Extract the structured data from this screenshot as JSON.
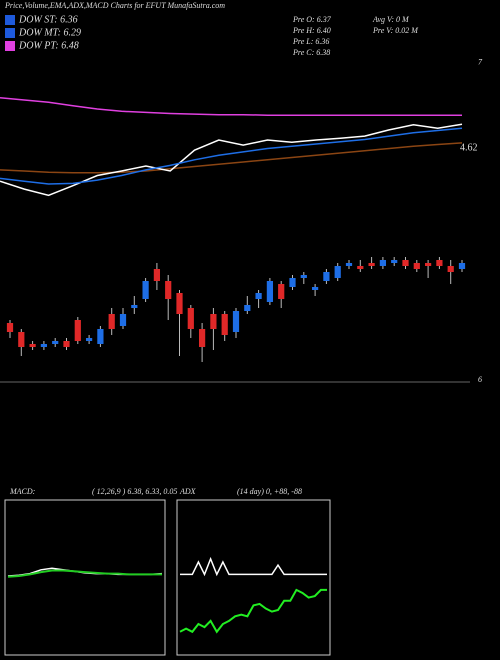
{
  "header": {
    "title": "Price,Volume,EMA,ADX,MACD Charts for EFUT MunafaSutra.com",
    "legend": [
      {
        "label": "DOW ST: 6.36",
        "color": "#1e5adc"
      },
      {
        "label": "DOW MT: 6.29",
        "color": "#1e5adc"
      },
      {
        "label": "DOW PT: 6.48",
        "color": "#e040e0"
      }
    ],
    "stats": [
      "Pre  O: 6.37",
      "Pre  H: 6.40",
      "Pre  L: 6.36",
      "Pre  C: 6.38"
    ],
    "volume": [
      "Avg V: 0  M",
      "Pre  V: 0.02  M"
    ]
  },
  "chart_data": [
    {
      "type": "line",
      "annotation": "4.62",
      "ylim": [
        4.3,
        7.05
      ],
      "yticks": [
        7
      ],
      "series": [
        {
          "color": "#e040e0",
          "values": [
            6.38,
            6.34,
            6.3,
            6.24,
            6.18,
            6.14,
            6.12,
            6.1,
            6.09,
            6.08,
            6.08,
            6.07,
            6.07,
            6.07,
            6.07,
            6.07,
            6.07,
            6.07,
            6.07,
            6.07
          ]
        },
        {
          "color": "#8b4513",
          "values": [
            5.1,
            5.08,
            5.06,
            5.05,
            5.05,
            5.06,
            5.08,
            5.12,
            5.16,
            5.2,
            5.24,
            5.28,
            5.32,
            5.36,
            5.4,
            5.44,
            5.48,
            5.52,
            5.55,
            5.58
          ]
        },
        {
          "color": "#ffffff",
          "values": [
            4.9,
            4.76,
            4.65,
            4.82,
            5.0,
            5.08,
            5.17,
            5.08,
            5.45,
            5.63,
            5.54,
            5.63,
            5.59,
            5.63,
            5.66,
            5.7,
            5.81,
            5.9,
            5.84,
            5.91
          ]
        },
        {
          "color": "#1e6ee6",
          "values": [
            4.95,
            4.9,
            4.85,
            4.86,
            4.92,
            5.0,
            5.1,
            5.18,
            5.28,
            5.36,
            5.42,
            5.48,
            5.52,
            5.56,
            5.6,
            5.64,
            5.7,
            5.76,
            5.8,
            5.84
          ]
        }
      ]
    },
    {
      "type": "candlestick",
      "ylim": [
        5.95,
        6.5
      ],
      "yticks": [
        6
      ],
      "up_color": "#1e6ee6",
      "down_color": "#e02828",
      "open": [
        6.19,
        6.16,
        6.12,
        6.11,
        6.12,
        6.13,
        6.2,
        6.13,
        6.12,
        6.22,
        6.18,
        6.24,
        6.27,
        6.37,
        6.33,
        6.29,
        6.24,
        6.17,
        6.22,
        6.22,
        6.16,
        6.23,
        6.27,
        6.26,
        6.32,
        6.31,
        6.34,
        6.3,
        6.33,
        6.34,
        6.38,
        6.38,
        6.39,
        6.38,
        6.39,
        6.4,
        6.39,
        6.39,
        6.4,
        6.38,
        6.37
      ],
      "close": [
        6.16,
        6.11,
        6.11,
        6.12,
        6.13,
        6.11,
        6.13,
        6.14,
        6.17,
        6.17,
        6.22,
        6.25,
        6.33,
        6.33,
        6.27,
        6.22,
        6.17,
        6.11,
        6.17,
        6.15,
        6.23,
        6.25,
        6.29,
        6.33,
        6.27,
        6.34,
        6.35,
        6.31,
        6.36,
        6.38,
        6.39,
        6.37,
        6.38,
        6.4,
        6.4,
        6.38,
        6.37,
        6.38,
        6.38,
        6.36,
        6.39
      ],
      "high": [
        6.2,
        6.17,
        6.13,
        6.13,
        6.14,
        6.14,
        6.21,
        6.15,
        6.18,
        6.24,
        6.24,
        6.28,
        6.34,
        6.39,
        6.35,
        6.3,
        6.25,
        6.19,
        6.24,
        6.23,
        6.24,
        6.28,
        6.3,
        6.34,
        6.33,
        6.35,
        6.36,
        6.32,
        6.37,
        6.39,
        6.4,
        6.4,
        6.41,
        6.41,
        6.41,
        6.41,
        6.4,
        6.4,
        6.41,
        6.4,
        6.4
      ],
      "low": [
        6.14,
        6.08,
        6.1,
        6.1,
        6.11,
        6.1,
        6.12,
        6.12,
        6.11,
        6.15,
        6.17,
        6.22,
        6.26,
        6.3,
        6.2,
        6.08,
        6.14,
        6.06,
        6.1,
        6.13,
        6.14,
        6.22,
        6.24,
        6.25,
        6.24,
        6.3,
        6.32,
        6.28,
        6.32,
        6.33,
        6.37,
        6.36,
        6.37,
        6.37,
        6.38,
        6.37,
        6.36,
        6.34,
        6.37,
        6.32,
        6.36
      ]
    },
    {
      "type": "line",
      "title": "MACD:",
      "subtitle": "( 12,26,9 ) 6.38, 6.33, 0.05",
      "ylim": [
        -1,
        1
      ],
      "series": [
        {
          "color": "#ffffff",
          "values": [
            0.02,
            0.03,
            0.05,
            0.1,
            0.12,
            0.1,
            0.08,
            0.06,
            0.05,
            0.05,
            0.04,
            0.04,
            0.04,
            0.04,
            0.05
          ]
        },
        {
          "color": "#22cc22",
          "values": [
            0.01,
            0.02,
            0.04,
            0.07,
            0.09,
            0.09,
            0.08,
            0.07,
            0.06,
            0.05,
            0.05,
            0.04,
            0.04,
            0.04,
            0.04
          ]
        }
      ]
    },
    {
      "type": "line",
      "title": "ADX",
      "subtitle": "(14 day) 0, +88, -88",
      "ylim": [
        0,
        100
      ],
      "series": [
        {
          "color": "#ffffff",
          "values": [
            52,
            52,
            52,
            60,
            52,
            62,
            52,
            60,
            52,
            52,
            52,
            52,
            52,
            52,
            52,
            52,
            58,
            52,
            52,
            52,
            52,
            52,
            52,
            52,
            52
          ]
        },
        {
          "color": "#22ee22",
          "values": [
            15,
            17,
            15,
            20,
            18,
            22,
            15,
            20,
            22,
            25,
            26,
            25,
            32,
            33,
            30,
            28,
            29,
            35,
            35,
            42,
            40,
            37,
            38,
            42,
            42
          ]
        }
      ]
    }
  ]
}
